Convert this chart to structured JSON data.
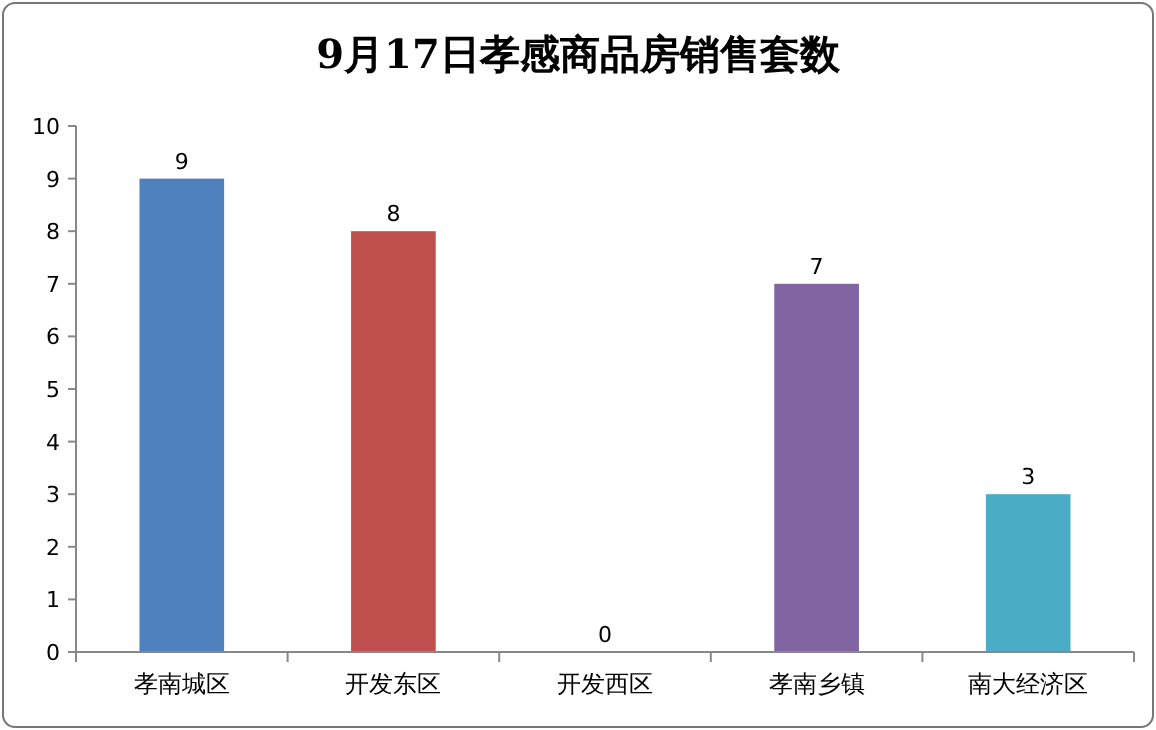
{
  "chart_data": {
    "type": "bar",
    "title": "9月17日孝感商品房销售套数",
    "categories": [
      "孝南城区",
      "开发东区",
      "开发西区",
      "孝南乡镇",
      "南大经济区"
    ],
    "values": [
      9,
      8,
      0,
      7,
      3
    ],
    "colors": [
      "#4f81bd",
      "#c0504d",
      "#9bbb59",
      "#8064a2",
      "#4bacc6"
    ],
    "ylim": [
      0,
      10
    ],
    "yticks": [
      0,
      1,
      2,
      3,
      4,
      5,
      6,
      7,
      8,
      9,
      10
    ],
    "data_labels": true,
    "grid": false,
    "legend": false
  }
}
